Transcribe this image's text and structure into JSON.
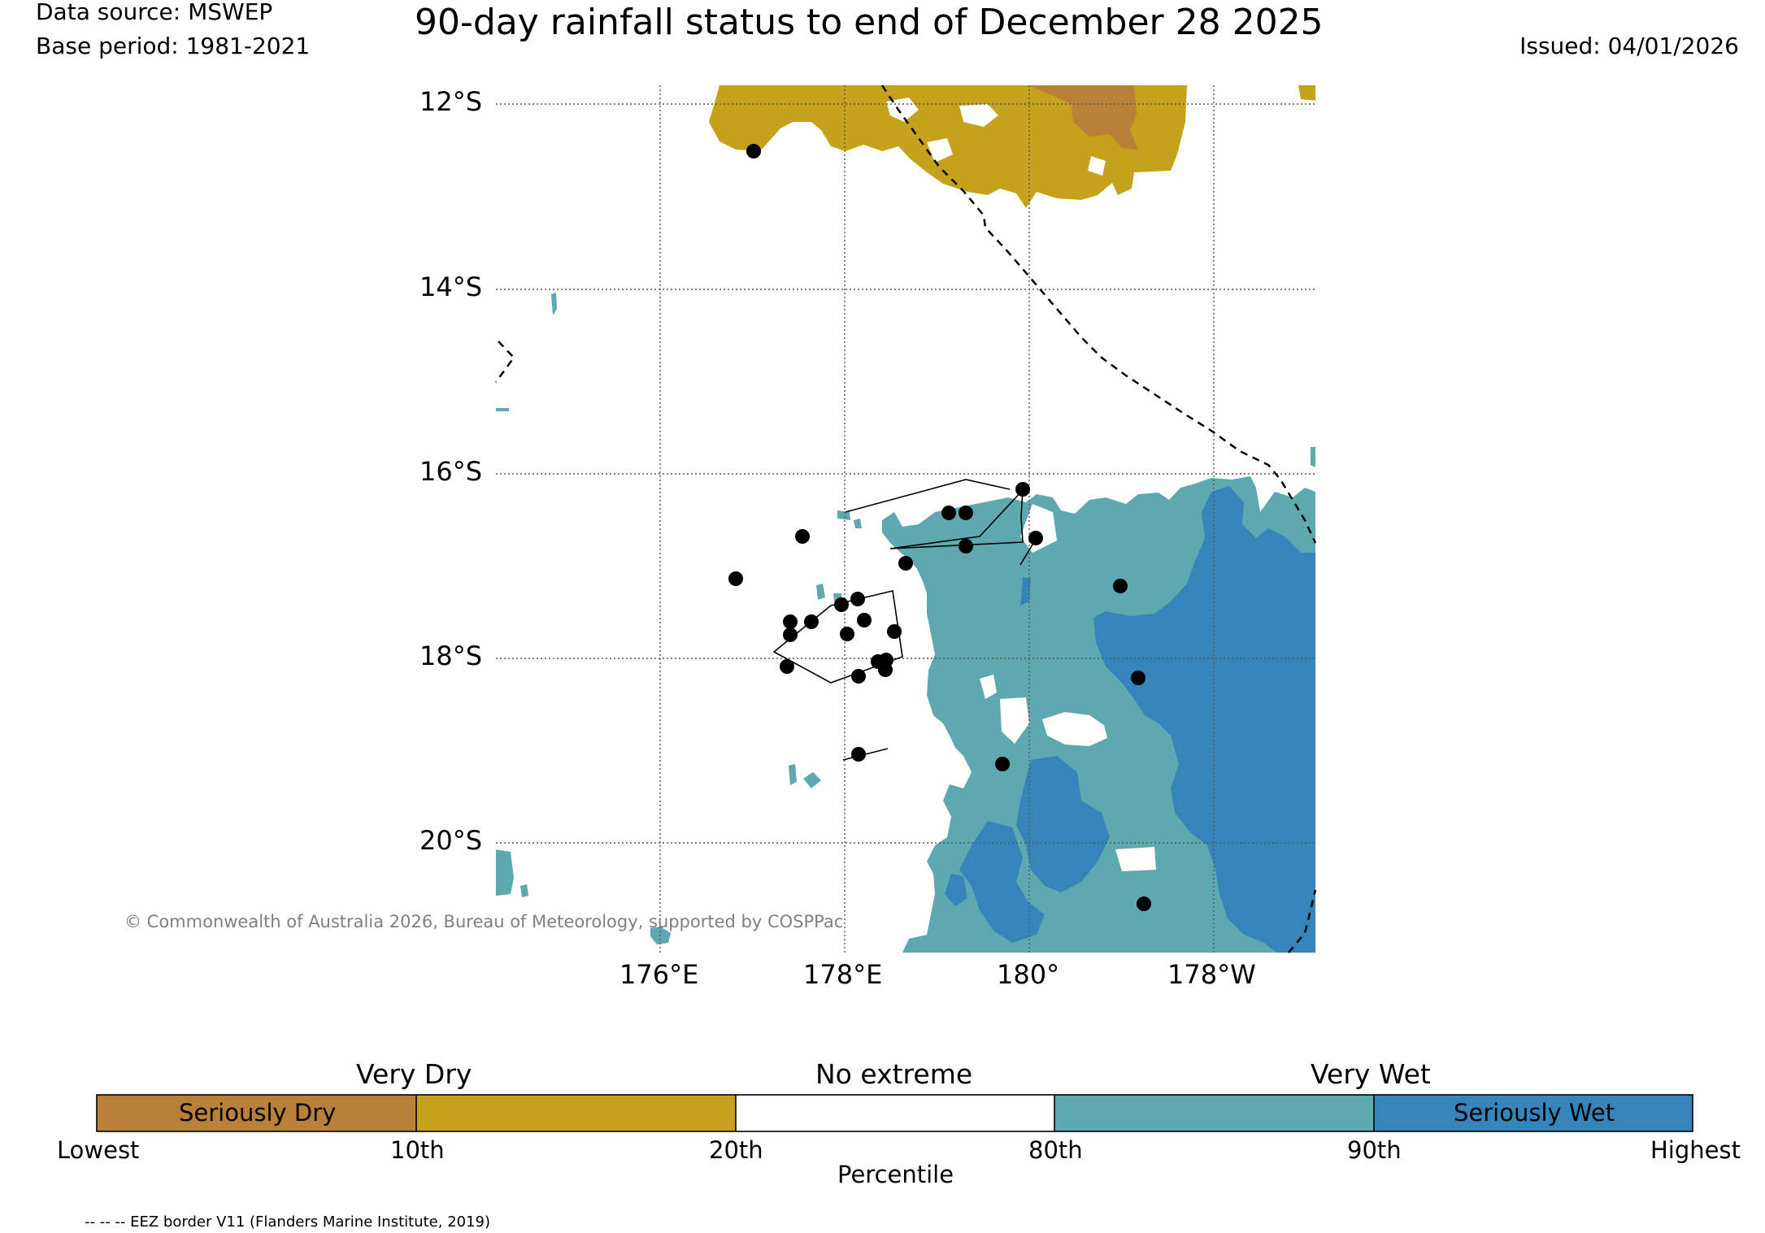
{
  "header": {
    "data_source": "Data source: MSWEP",
    "base_period": "Base period: 1981-2021",
    "title": "90-day rainfall status to end of December 28 2025",
    "issued": "Issued: 04/01/2026"
  },
  "map": {
    "lat_labels": [
      "12°S",
      "14°S",
      "16°S",
      "18°S",
      "20°S"
    ],
    "lon_labels": [
      "176°E",
      "178°E",
      "180°",
      "178°W"
    ],
    "copyright": "© Commonwealth of Australia 2026, Bureau of Meteorology, supported by COSPPac",
    "colors": {
      "seriously_dry": "#b88038",
      "very_dry": "#c4a21c",
      "no_extreme": "#ffffff",
      "very_wet": "#5ea9b0",
      "seriously_wet": "#3585bb"
    }
  },
  "legend": {
    "headings": [
      "Very Dry",
      "No extreme",
      "Very Wet"
    ],
    "segment_labels": [
      "Seriously Dry",
      "",
      "",
      "",
      "Seriously Wet"
    ],
    "ticks": [
      "Lowest",
      "10th",
      "20th",
      "80th",
      "90th",
      "Highest"
    ],
    "axis_label": "Percentile"
  },
  "footnote": "-- -- -- EEZ border V11 (Flanders Marine Institute, 2019)"
}
